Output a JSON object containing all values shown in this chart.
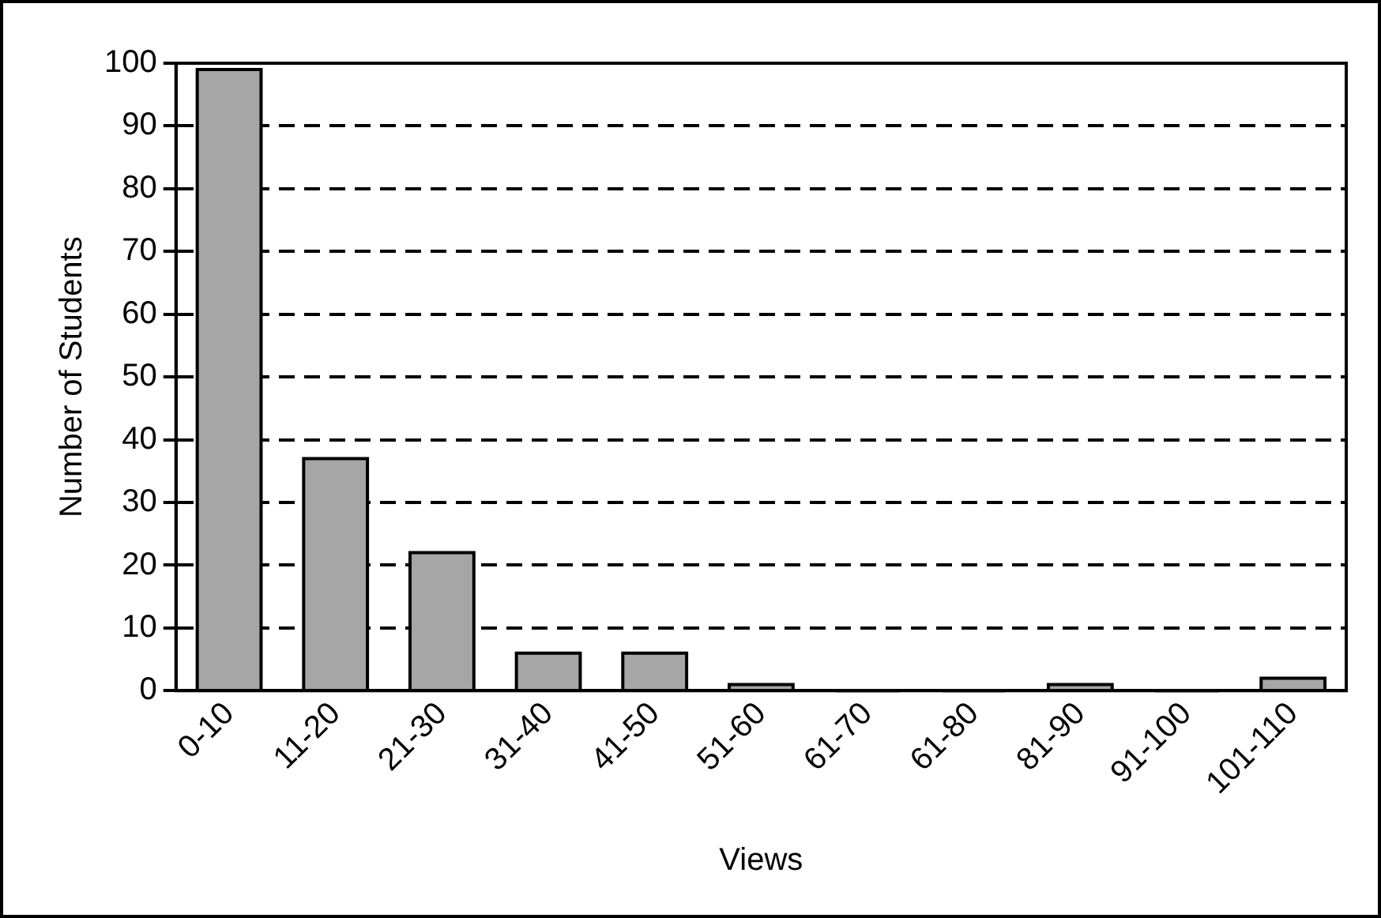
{
  "chart_data": {
    "type": "bar",
    "xlabel": "Views",
    "ylabel": "Number of Students",
    "categories": [
      "0-10",
      "11-20",
      "21-30",
      "31-40",
      "41-50",
      "51-60",
      "61-70",
      "61-80",
      "81-90",
      "91-100",
      "101-110"
    ],
    "values": [
      99,
      37,
      22,
      6,
      6,
      1,
      0,
      0,
      1,
      0,
      2
    ],
    "color": "#a6a6a6",
    "ylim": [
      0,
      100
    ],
    "yticks": [
      0,
      10,
      20,
      30,
      40,
      50,
      60,
      70,
      80,
      90,
      100
    ],
    "grid": "y",
    "legend": false,
    "line_style": "dashed"
  }
}
